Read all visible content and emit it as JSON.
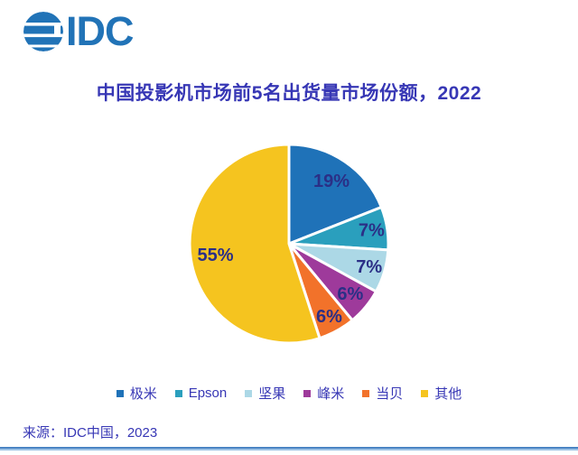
{
  "logo": {
    "text": "IDC",
    "color": "#2173B7"
  },
  "title": "中国投影机市场前5名出货量市场份额，2022",
  "source": "来源：IDC中国，2023",
  "chart_data": {
    "type": "pie",
    "title": "中国投影机市场前5名出货量市场份额，2022",
    "units": "percent share of shipments",
    "direction": "clockwise",
    "start_angle_deg": 0,
    "legend_position": "bottom",
    "data_labels": "percent",
    "segments": [
      {
        "label": "极米",
        "value": 19,
        "display": "19%",
        "color": "#1F72B8"
      },
      {
        "label": "Epson",
        "value": 7,
        "display": "7%",
        "color": "#2A9FBD"
      },
      {
        "label": "坚果",
        "value": 7,
        "display": "7%",
        "color": "#ACD8E6"
      },
      {
        "label": "峰米",
        "value": 6,
        "display": "6%",
        "color": "#9E3A9B"
      },
      {
        "label": "当贝",
        "value": 6,
        "display": "6%",
        "color": "#F2722A"
      },
      {
        "label": "其他",
        "value": 55,
        "display": "55%",
        "color": "#F5C41F"
      }
    ]
  }
}
